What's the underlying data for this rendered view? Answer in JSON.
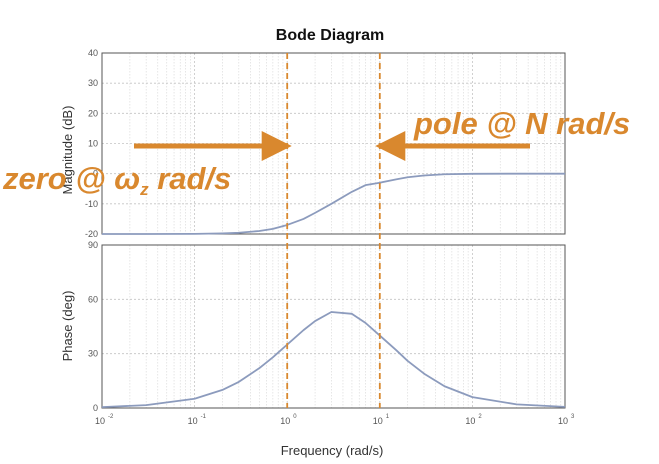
{
  "chart_data": {
    "type": "line",
    "title": "Bode Diagram",
    "xlabel": "Frequency  (rad/s)",
    "x_scale": "log",
    "xlim": [
      0.01,
      1000
    ],
    "x_ticks": [
      {
        "base": "10",
        "exp": "-2"
      },
      {
        "base": "10",
        "exp": "-1"
      },
      {
        "base": "10",
        "exp": "0"
      },
      {
        "base": "10",
        "exp": "1"
      },
      {
        "base": "10",
        "exp": "2"
      },
      {
        "base": "10",
        "exp": "3"
      }
    ],
    "grid": true,
    "panels": [
      {
        "ylabel": "Magnitude (dB)",
        "ylim": [
          -20,
          40
        ],
        "y_ticks": [
          "40",
          "30",
          "20",
          "10",
          "0",
          "-10",
          "-20"
        ],
        "series": [
          {
            "color": "#8c9bbd",
            "x": [
              0.01,
              0.03,
              0.1,
              0.2,
              0.3,
              0.5,
              0.7,
              1,
              1.5,
              2,
              3,
              5,
              7,
              10,
              15,
              20,
              30,
              50,
              100,
              300,
              1000
            ],
            "y": [
              -20,
              -20,
              -19.96,
              -19.8,
              -19.6,
              -19.0,
              -18.3,
              -17.0,
              -15.0,
              -13.0,
              -10.0,
              -6.0,
              -3.8,
              -3.0,
              -1.9,
              -1.2,
              -0.6,
              -0.2,
              -0.05,
              0,
              0
            ]
          }
        ]
      },
      {
        "ylabel": "Phase (deg)",
        "ylim": [
          0,
          90
        ],
        "y_ticks": [
          "90",
          "60",
          "30",
          "0"
        ],
        "series": [
          {
            "color": "#8c9bbd",
            "x": [
              0.01,
              0.03,
              0.1,
              0.2,
              0.3,
              0.5,
              0.7,
              1,
              1.5,
              2,
              3,
              5,
              7,
              10,
              15,
              20,
              30,
              50,
              100,
              300,
              1000
            ],
            "y": [
              0.5,
              1.6,
              5.1,
              10.0,
              14.4,
              22.0,
              28.0,
              35.0,
              43.0,
              48.0,
              53.0,
              52.0,
              47.0,
              40.0,
              32.0,
              26.0,
              19.0,
              12.0,
              6.0,
              2.0,
              0.6
            ]
          }
        ]
      }
    ],
    "markers": [
      {
        "x": 1,
        "color": "#d9882e",
        "style": "dashed"
      },
      {
        "x": 10,
        "color": "#d9882e",
        "style": "dashed"
      }
    ],
    "annotations": [
      {
        "id": "zero",
        "text_before": "zero @ ",
        "symbol": "ω",
        "subscript": "z",
        "text_after": " rad/s",
        "arrow_direction": "right"
      },
      {
        "id": "pole",
        "text": "pole @ N rad/s",
        "arrow_direction": "left"
      }
    ],
    "accent_color": "#d9882e",
    "curve_color": "#8c9bbd"
  }
}
